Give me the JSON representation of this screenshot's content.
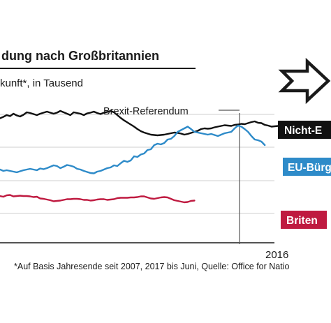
{
  "chart_data": {
    "type": "line",
    "title": "dung nach Großbritannien",
    "subtitle": "kunft*, in Tausend",
    "annotation": "Brexit-Referendum",
    "x_tick_label": "2016",
    "footnote": "*Auf Basis Jahresende seit 2007, 2017 bis Juni, Quelle: Office for Natio",
    "grid": true,
    "series": [
      {
        "name": "Nicht-E",
        "color": "#111111",
        "values": [
          179,
          183,
          188,
          185,
          192,
          187,
          184,
          189,
          196,
          194,
          191,
          188,
          192,
          195,
          198,
          195,
          192,
          195,
          200,
          196,
          192,
          188,
          196,
          194,
          192,
          188,
          193,
          195,
          198,
          194,
          191,
          195,
          197,
          200,
          196,
          188,
          180,
          173,
          167,
          161,
          155,
          148,
          142,
          138,
          135,
          132,
          131,
          130,
          131,
          132,
          134,
          136,
          138,
          137,
          135,
          132,
          134,
          137,
          140,
          143,
          148,
          150,
          149,
          150,
          153,
          155,
          157,
          159,
          158,
          157,
          160,
          161,
          163,
          162,
          165,
          168,
          170,
          166,
          165,
          160,
          158,
          155,
          156,
          157
        ]
      },
      {
        "name": "EU-Bürg",
        "color": "#2e8bc9",
        "values": [
          32,
          28,
          30,
          28,
          26,
          24,
          27,
          30,
          32,
          34,
          32,
          30,
          35,
          33,
          36,
          40,
          44,
          42,
          36,
          40,
          45,
          43,
          40,
          34,
          32,
          28,
          25,
          22,
          21,
          26,
          28,
          32,
          36,
          38,
          44,
          42,
          50,
          57,
          54,
          58,
          70,
          68,
          75,
          78,
          88,
          90,
          102,
          106,
          104,
          108,
          118,
          120,
          128,
          140,
          145,
          150,
          155,
          148,
          140,
          138,
          136,
          134,
          132,
          134,
          131,
          128,
          132,
          136,
          138,
          140,
          150,
          158,
          155,
          148,
          140,
          128,
          118,
          116,
          112,
          102
        ]
      },
      {
        "name": "Briten",
        "color": "#bf1a40",
        "values": [
          -44,
          -46,
          -42,
          -41,
          -45,
          -44,
          -43,
          -44,
          -44,
          -45,
          -47,
          -46,
          -51,
          -52,
          -54,
          -56,
          -59,
          -58,
          -57,
          -55,
          -53,
          -53,
          -52,
          -52,
          -53,
          -55,
          -55,
          -57,
          -56,
          -54,
          -53,
          -53,
          -55,
          -54,
          -53,
          -50,
          -49,
          -49,
          -49,
          -48,
          -48,
          -47,
          -45,
          -45,
          -48,
          -51,
          -52,
          -50,
          -48,
          -47,
          -48,
          -52,
          -56,
          -58,
          -60,
          -62,
          -61,
          -58,
          -57
        ]
      }
    ]
  }
}
